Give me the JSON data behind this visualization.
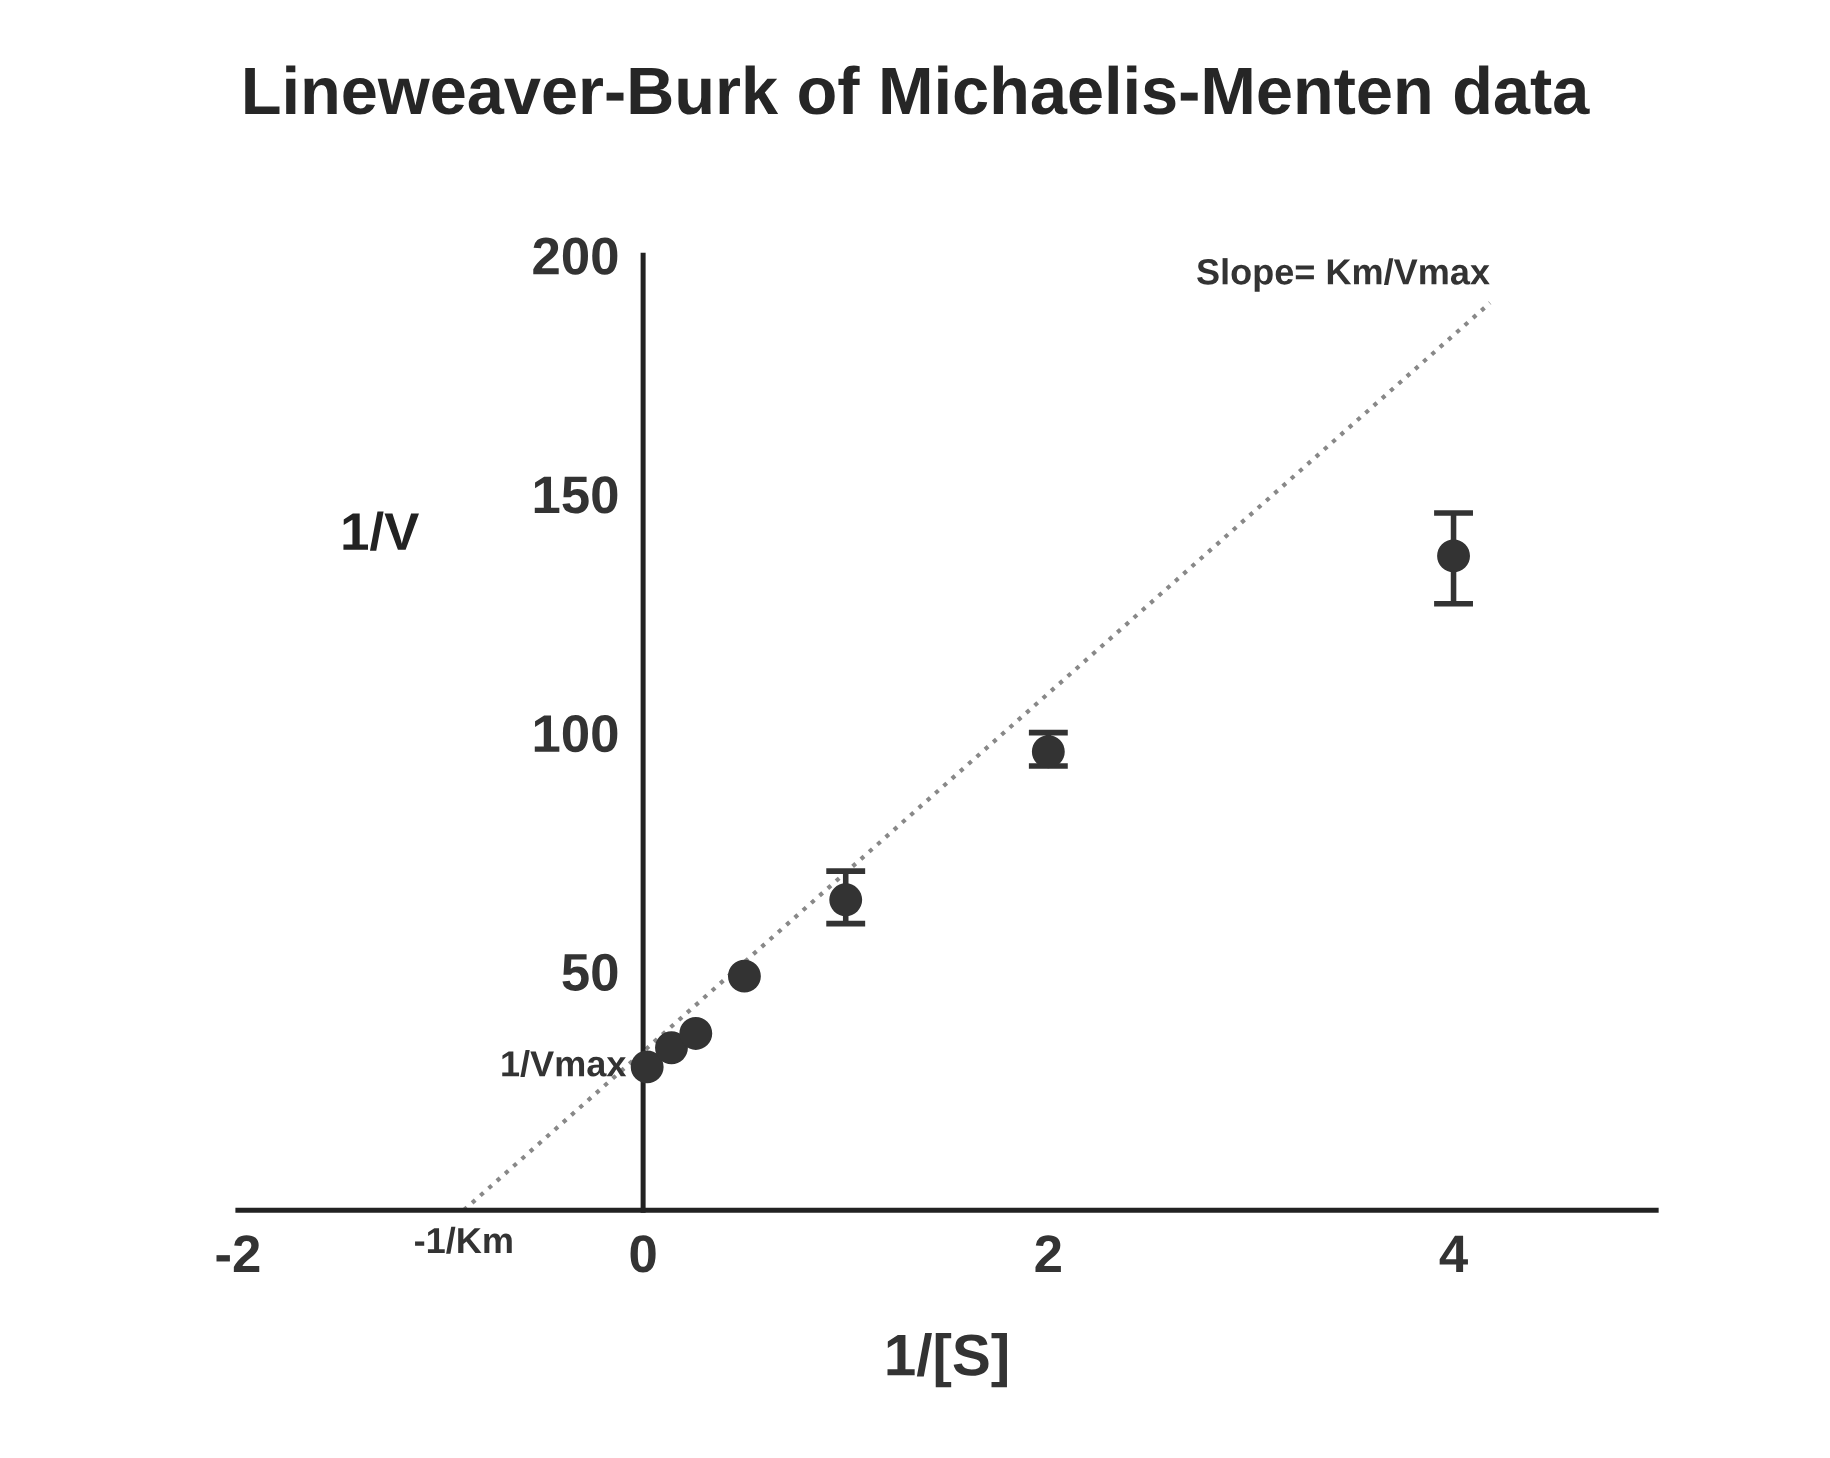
{
  "chart_data": {
    "type": "scatter",
    "title": "Lineweaver-Burk of Michaelis-Menten data",
    "xlabel": "1/[S]",
    "ylabel": "1/V",
    "xlim": [
      -2,
      5
    ],
    "ylim": [
      0,
      200
    ],
    "xticks": [
      -2,
      0,
      2,
      4
    ],
    "yticks": [
      {
        "value": 0,
        "label": null
      },
      50,
      100,
      150,
      200
    ],
    "grid": false,
    "legend": false,
    "marker": "circle",
    "series": [
      {
        "color": "#333333",
        "x": [
          0.02,
          0.14,
          0.26,
          0.5,
          1,
          2,
          4
        ],
        "values": [
          30,
          34,
          37,
          49,
          65,
          96,
          137
        ],
        "errors": [
          null,
          null,
          null,
          null,
          [
            60,
            71
          ],
          [
            93,
            100
          ],
          [
            127,
            146
          ]
        ]
      },
      {
        "type": "line",
        "color": "#888888",
        "line_style": "dotted",
        "marker": "none",
        "x": [
          -0.885,
          4.18
        ],
        "values": [
          0,
          190
        ]
      }
    ],
    "annotations": [
      {
        "text": "Slope= Km/Vmax",
        "x": 4.18,
        "y": 190
      },
      {
        "text": "1/Vmax",
        "x": 0,
        "y": 30
      },
      {
        "text": "-1/Km",
        "x": -0.885,
        "y": 0
      }
    ]
  }
}
